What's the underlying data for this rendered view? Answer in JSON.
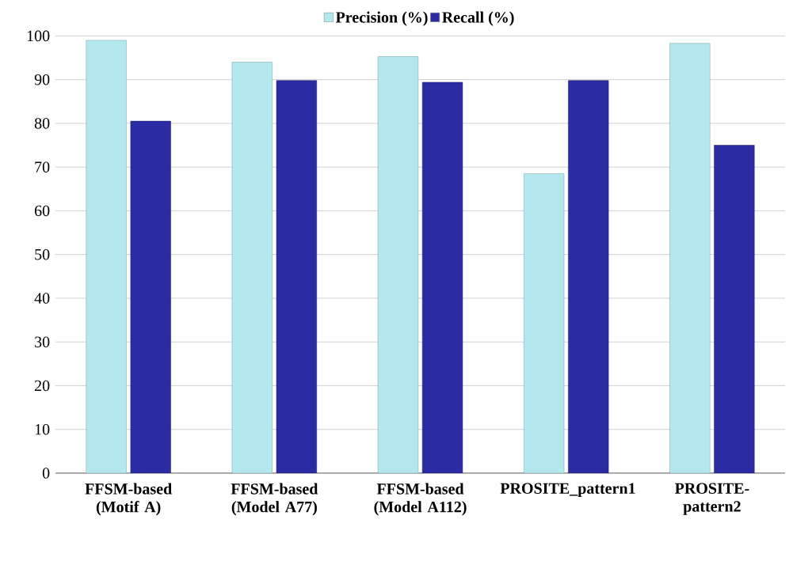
{
  "chart_data": {
    "type": "bar",
    "categories": [
      "FFSM-based (Motif A)",
      "FFSM-based (Model A77)",
      "FFSM-based (Model A112)",
      "PROSITE_pattern1",
      "PROSITE-pattern2"
    ],
    "series": [
      {
        "name": "Precision (%)",
        "color": "#b3e9ee",
        "values": [
          99,
          94,
          95.3,
          68.5,
          98.3
        ]
      },
      {
        "name": "Recall (%)",
        "color": "#2b2ba3",
        "values": [
          80.5,
          89.8,
          89.4,
          89.8,
          75
        ]
      }
    ],
    "ylim": [
      0,
      100
    ],
    "yticks": [
      0,
      10,
      20,
      30,
      40,
      50,
      60,
      70,
      80,
      90,
      100
    ],
    "grid": "y",
    "legend": "top"
  }
}
